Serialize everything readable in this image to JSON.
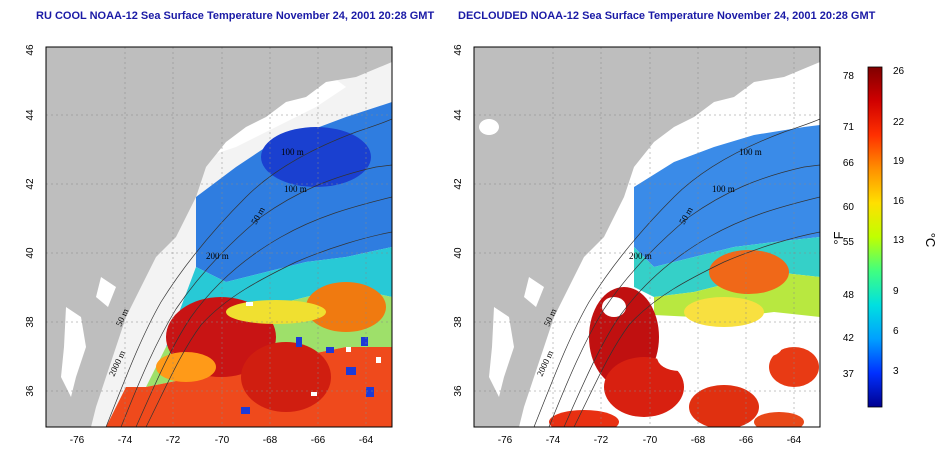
{
  "panels": [
    {
      "title": "RU COOL NOAA-12 Sea Surface Temperature November 24, 2001 20:28 GMT",
      "type": "cool",
      "contours": [
        "100 m",
        "100 m",
        "50 m",
        "200 m",
        "50 m",
        "2000 m"
      ]
    },
    {
      "title": "DECLOUDED NOAA-12 Sea Surface Temperature November 24, 2001 20:28 GMT",
      "type": "declouded",
      "contours": [
        "100 m",
        "100 m",
        "50 m",
        "200 m",
        "50 m",
        "2000 m"
      ]
    }
  ],
  "axes": {
    "lon_ticks": [
      "-76",
      "-74",
      "-72",
      "-70",
      "-68",
      "-66",
      "-64"
    ],
    "lat_ticks": [
      "36",
      "38",
      "40",
      "42",
      "44",
      "46"
    ]
  },
  "colorbar": {
    "fahrenheit_ticks": [
      "78",
      "71",
      "66",
      "60",
      "55",
      "48",
      "42",
      "37"
    ],
    "celsius_ticks": [
      "26",
      "22",
      "19",
      "16",
      "13",
      "9",
      "6",
      "3"
    ],
    "left_unit": "°F",
    "right_unit": "°C",
    "colors": [
      "#000090",
      "#0030ff",
      "#00a0ff",
      "#00e0e0",
      "#40ff80",
      "#c0ff00",
      "#ffe000",
      "#ff9000",
      "#ff3000",
      "#d00000",
      "#800000"
    ]
  },
  "colors": {
    "land": "#bebebe",
    "cloud": "#ffffff",
    "title": "#1a1aa6"
  }
}
